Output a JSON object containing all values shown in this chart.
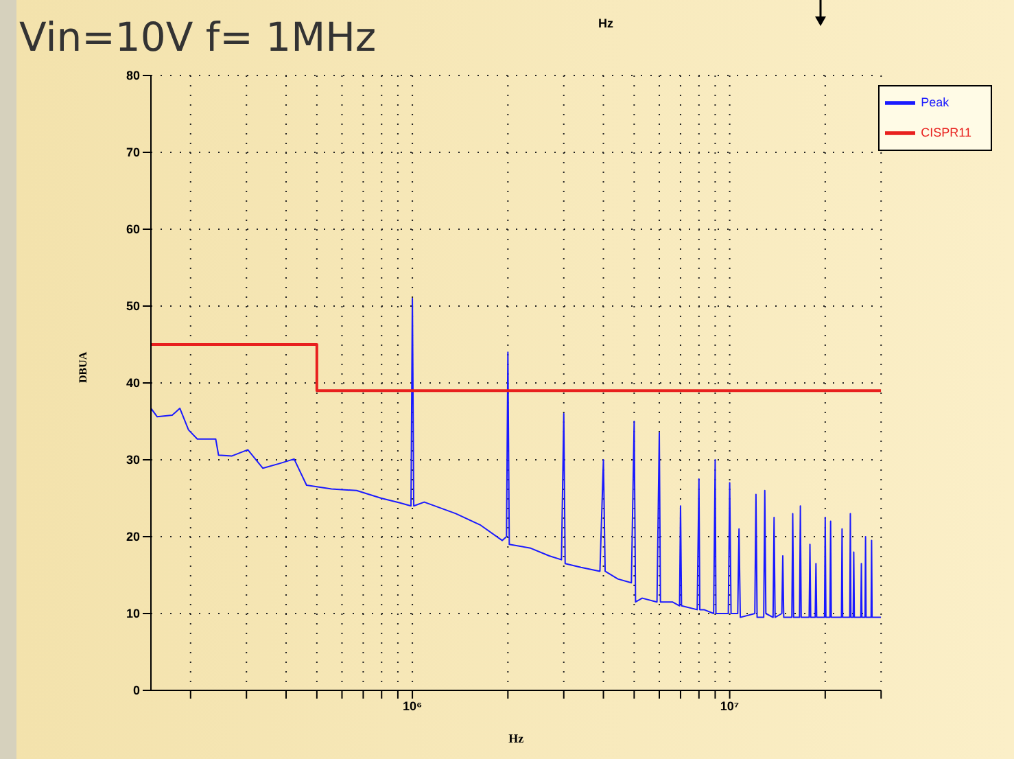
{
  "chart_data": {
    "type": "line",
    "title": "Vin=10V f= 1MHz",
    "xlabel": "Hz",
    "ylabel": "DBUA",
    "log": "x",
    "grid": true,
    "legend": "top right",
    "annotations": [
      "Hz"
    ],
    "xlim": [
      150000,
      30000000
    ],
    "ylim": [
      0,
      80
    ],
    "xticks": [
      {
        "value": 200000,
        "label": null
      },
      {
        "value": 300000,
        "label": null
      },
      {
        "value": 400000,
        "label": null
      },
      {
        "value": 500000,
        "label": null
      },
      {
        "value": 600000,
        "label": null
      },
      {
        "value": 700000,
        "label": null
      },
      {
        "value": 800000,
        "label": null
      },
      {
        "value": 900000,
        "label": null
      },
      {
        "value": 1000000,
        "label": "10⁶"
      },
      {
        "value": 2000000,
        "label": null
      },
      {
        "value": 3000000,
        "label": null
      },
      {
        "value": 4000000,
        "label": null
      },
      {
        "value": 5000000,
        "label": null
      },
      {
        "value": 6000000,
        "label": null
      },
      {
        "value": 7000000,
        "label": null
      },
      {
        "value": 8000000,
        "label": null
      },
      {
        "value": 9000000,
        "label": null
      },
      {
        "value": 10000000,
        "label": "10⁷"
      },
      {
        "value": 20000000,
        "label": null
      },
      {
        "value": 30000000,
        "label": null
      }
    ],
    "yticks": [
      0,
      10,
      20,
      30,
      40,
      50,
      60,
      70,
      80
    ],
    "series": [
      {
        "name": "Peak",
        "color": "#1a1aff",
        "x": [
          150000,
          157000,
          175000,
          185000,
          197000,
          210000,
          240000,
          245000,
          270000,
          303000,
          338000,
          380000,
          424000,
          464000,
          556000,
          667000,
          798000,
          914000,
          990000,
          1000000,
          1010000,
          1090000,
          1370000,
          1640000,
          1920000,
          1980000,
          2000000,
          2020000,
          2360000,
          2700000,
          2950000,
          3000000,
          3030000,
          3400000,
          3900000,
          4000000,
          4050000,
          4440000,
          4900000,
          5000000,
          5050000,
          5300000,
          5900000,
          6000000,
          6050000,
          6600000,
          6950000,
          7000000,
          7050000,
          7900000,
          8000000,
          8050000,
          8300000,
          8900000,
          9000000,
          9050000,
          9900000,
          10000000,
          10100000,
          10600000,
          10700000,
          10800000,
          12000000,
          12100000,
          12200000,
          12800000,
          12900000,
          13000000,
          13700000,
          13800000,
          13900000,
          14600000,
          14700000,
          14800000,
          15700000,
          15800000,
          15900000,
          16600000,
          16700000,
          16800000,
          17800000,
          17900000,
          18000000,
          18600000,
          18700000,
          18800000,
          19900000,
          20000000,
          20100000,
          20700000,
          20800000,
          20900000,
          22500000,
          22600000,
          22700000,
          23900000,
          24000000,
          24100000,
          24500000,
          24600000,
          24700000,
          25900000,
          26000000,
          26100000,
          26700000,
          26800000,
          26900000,
          27900000,
          28000000,
          28100000,
          30000000
        ],
        "values": [
          36.7,
          35.6,
          35.8,
          36.7,
          33.9,
          32.7,
          32.7,
          30.6,
          30.5,
          31.3,
          28.9,
          29.5,
          30.1,
          26.7,
          26.2,
          26,
          25,
          24.4,
          24,
          51,
          24,
          24.5,
          23,
          21.5,
          19.5,
          20,
          44,
          19,
          18.5,
          17.5,
          17,
          36,
          16.5,
          16,
          15.5,
          30,
          15.5,
          14.5,
          14,
          35,
          11.5,
          12,
          11.5,
          33.5,
          11.5,
          11.5,
          11,
          24,
          11,
          10.5,
          27.5,
          10.5,
          10.5,
          10,
          30,
          10,
          10,
          27,
          10,
          10,
          21,
          9.5,
          10,
          25.5,
          9.5,
          9.5,
          26,
          10,
          9.5,
          22.5,
          9.5,
          10,
          17.5,
          9.5,
          9.5,
          23,
          9.5,
          9.5,
          24,
          9.5,
          9.5,
          19,
          9.5,
          9.5,
          16.5,
          9.5,
          9.5,
          22.5,
          9.5,
          9.5,
          22,
          9.5,
          9.5,
          21,
          9.5,
          9.5,
          23,
          9.5,
          9.5,
          18,
          9.5,
          9.5,
          16.5,
          9.5,
          9.5,
          20,
          9.5,
          9.5,
          19.5,
          9.5,
          9.5
        ]
      },
      {
        "name": "CISPR11",
        "color": "#e8201e",
        "x": [
          150000,
          500000,
          500000,
          30000000
        ],
        "values": [
          45,
          45,
          39,
          39
        ]
      }
    ]
  }
}
